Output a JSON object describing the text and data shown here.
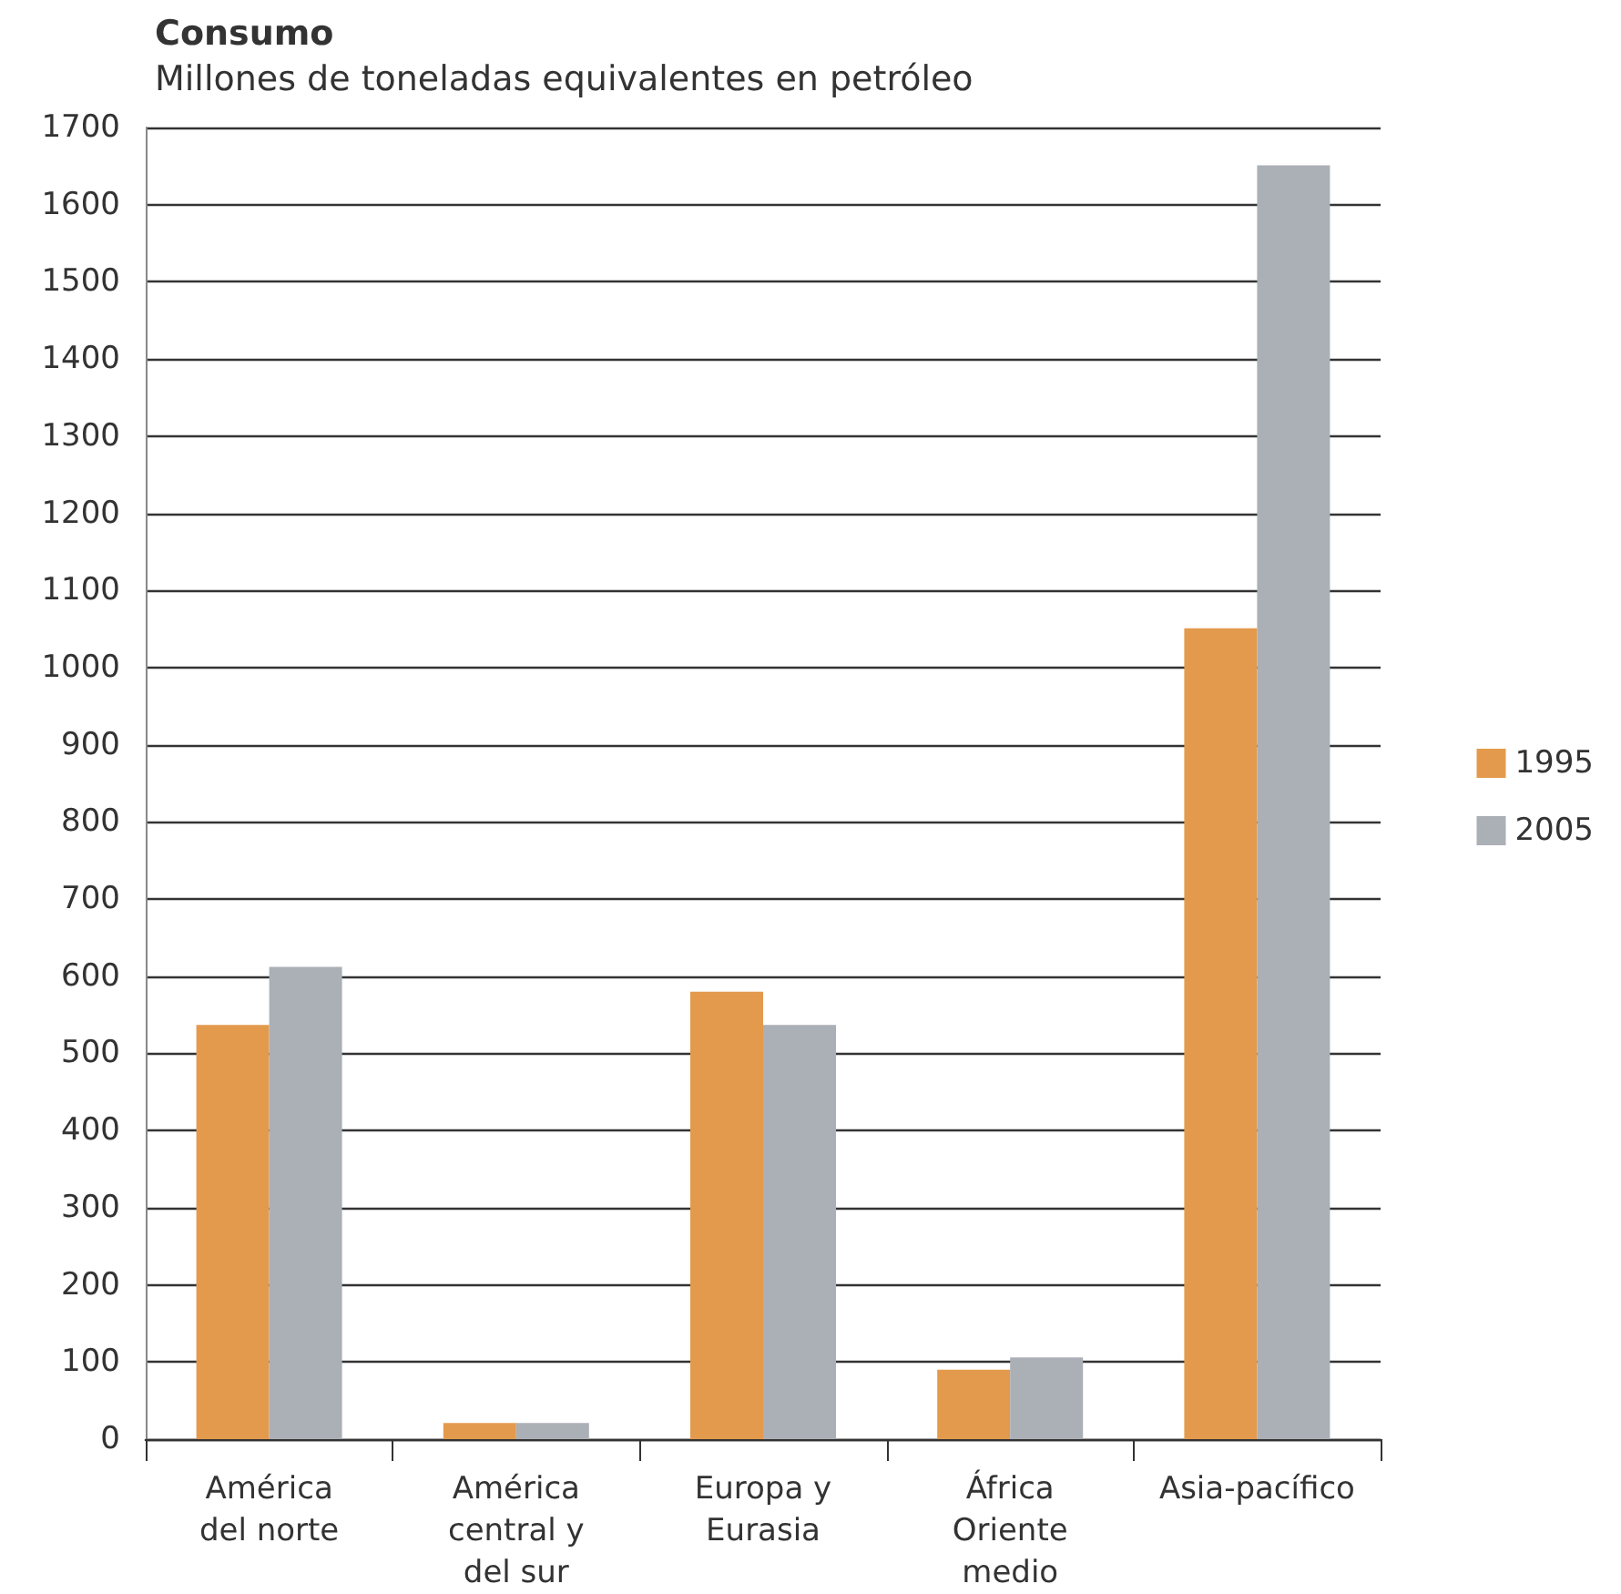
{
  "chart_data": {
    "type": "bar",
    "title": "Consumo",
    "subtitle": "Millones de toneladas equivalentes en petróleo",
    "categories": [
      "América del norte",
      "América central y del sur",
      "Europa y Eurasia",
      "África Oriente medio",
      "Asia-pacífico"
    ],
    "series": [
      {
        "name": "1995",
        "color": "#e49a4c",
        "values": [
          537,
          21,
          580,
          90,
          1051
        ]
      },
      {
        "name": "2005",
        "color": "#abafb6",
        "values": [
          612,
          21,
          537,
          106,
          1651
        ]
      }
    ],
    "ylim": [
      0,
      1700
    ],
    "yticks": [
      0,
      100,
      200,
      300,
      400,
      500,
      600,
      700,
      800,
      900,
      1000,
      1100,
      1200,
      1300,
      1400,
      1500,
      1600,
      1700
    ],
    "grid": "y",
    "legend": "right"
  }
}
